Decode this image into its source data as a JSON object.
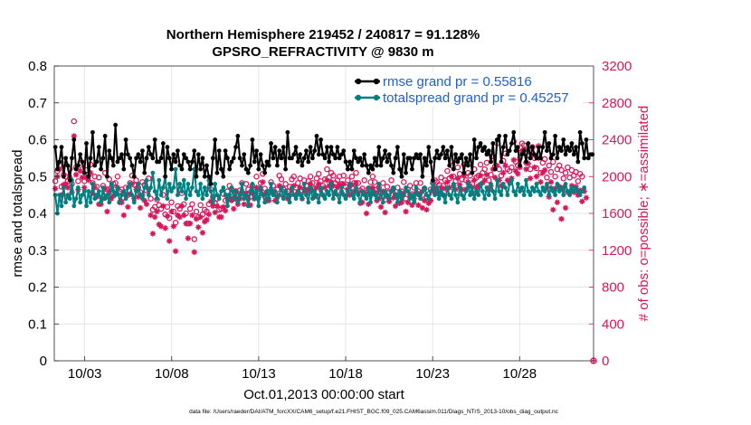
{
  "chart_data": {
    "type": "line",
    "title_line1": "Northern Hemisphere 219452 / 240817 = 91.128%",
    "title_line2": "GPSRO_REFRACTIVITY @ 9830 m",
    "xlabel": "Oct.01,2013 00:00:00 start",
    "ylabel_left": "rmse and totalspread",
    "ylabel_right": "# of obs: o=possible; ∗=assimilated",
    "footer": "data file: /Users/raeder/DAI/ATM_forcXX/CAM6_setup/f.e21.FHIST_BGC.f09_025.CAM6assim.011/Diags_NTrS_2013-10/obs_diag_output.nc",
    "x_range_days": [
      0.25,
      31.25
    ],
    "x_ticks": [
      {
        "day": 2,
        "label": "10/03"
      },
      {
        "day": 7,
        "label": "10/08"
      },
      {
        "day": 12,
        "label": "10/13"
      },
      {
        "day": 17,
        "label": "10/18"
      },
      {
        "day": 22,
        "label": "10/23"
      },
      {
        "day": 27,
        "label": "10/28"
      }
    ],
    "ylim_left": [
      0,
      0.8
    ],
    "yticks_left": [
      "0",
      "0.1",
      "0.2",
      "0.3",
      "0.4",
      "0.5",
      "0.6",
      "0.7",
      "0.8"
    ],
    "ylim_right": [
      0,
      3200
    ],
    "yticks_right": [
      "0",
      "400",
      "800",
      "1200",
      "1600",
      "2000",
      "2400",
      "2800",
      "3200"
    ],
    "legend": {
      "position": "top-right",
      "entries": [
        {
          "label": "rmse grand pr = 0.55816",
          "color": "#000000"
        },
        {
          "label": "totalspread grand pr = 0.45257",
          "color": "#008080"
        }
      ]
    },
    "colors": {
      "rmse": "#000000",
      "spread": "#008080",
      "obs": "#d6185a",
      "legend_text": "#1f5fd6"
    },
    "series": [
      {
        "name": "rmse",
        "axis": "left",
        "values": [
          0.58,
          0.52,
          0.54,
          0.58,
          0.5,
          0.55,
          0.53,
          0.49,
          0.55,
          0.6,
          0.52,
          0.53,
          0.56,
          0.54,
          0.51,
          0.59,
          0.5,
          0.55,
          0.62,
          0.53,
          0.54,
          0.58,
          0.52,
          0.55,
          0.61,
          0.5,
          0.57,
          0.55,
          0.53,
          0.64,
          0.54,
          0.55,
          0.56,
          0.52,
          0.6,
          0.56,
          0.55,
          0.53,
          0.5,
          0.55,
          0.56,
          0.54,
          0.57,
          0.51,
          0.55,
          0.58,
          0.56,
          0.55,
          0.6,
          0.54,
          0.54,
          0.55,
          0.59,
          0.5,
          0.58,
          0.55,
          0.52,
          0.56,
          0.54,
          0.57,
          0.53,
          0.52,
          0.56,
          0.55,
          0.54,
          0.52,
          0.54,
          0.57,
          0.5,
          0.56,
          0.52,
          0.55,
          0.5,
          0.53,
          0.5,
          0.48,
          0.55,
          0.6,
          0.51,
          0.57,
          0.52,
          0.5,
          0.57,
          0.55,
          0.52,
          0.54,
          0.55,
          0.58,
          0.61,
          0.55,
          0.53,
          0.56,
          0.52,
          0.51,
          0.53,
          0.6,
          0.54,
          0.57,
          0.52,
          0.56,
          0.53,
          0.51,
          0.54,
          0.53,
          0.59,
          0.55,
          0.58,
          0.53,
          0.57,
          0.55,
          0.58,
          0.52,
          0.62,
          0.55,
          0.55,
          0.56,
          0.58,
          0.54,
          0.56,
          0.53,
          0.55,
          0.57,
          0.54,
          0.58,
          0.55,
          0.57,
          0.61,
          0.56,
          0.6,
          0.56,
          0.55,
          0.58,
          0.54,
          0.58,
          0.56,
          0.55,
          0.58,
          0.55,
          0.56,
          0.57,
          0.54,
          0.52,
          0.54,
          0.52,
          0.57,
          0.55,
          0.54,
          0.55,
          0.53,
          0.56,
          0.53,
          0.51,
          0.53,
          0.52,
          0.55,
          0.53,
          0.58,
          0.53,
          0.55,
          0.57,
          0.54,
          0.56,
          0.53,
          0.51,
          0.55,
          0.58,
          0.52,
          0.5,
          0.56,
          0.51,
          0.55,
          0.55,
          0.52,
          0.55,
          0.56,
          0.55,
          0.56,
          0.5,
          0.55,
          0.53,
          0.58,
          0.54,
          0.49,
          0.55,
          0.57,
          0.55,
          0.56,
          0.58,
          0.55,
          0.57,
          0.53,
          0.58,
          0.52,
          0.56,
          0.54,
          0.55,
          0.56,
          0.51,
          0.55,
          0.53,
          0.56,
          0.51,
          0.6,
          0.55,
          0.58,
          0.59,
          0.57,
          0.58,
          0.56,
          0.57,
          0.54,
          0.59,
          0.52,
          0.6,
          0.61,
          0.54,
          0.58,
          0.61,
          0.56,
          0.57,
          0.59,
          0.62,
          0.57,
          0.58,
          0.53,
          0.56,
          0.57,
          0.54,
          0.59,
          0.55,
          0.58,
          0.56,
          0.55,
          0.58,
          0.55,
          0.58,
          0.62,
          0.57,
          0.59,
          0.55,
          0.56,
          0.61,
          0.55,
          0.58,
          0.57,
          0.6,
          0.56,
          0.58,
          0.57,
          0.59,
          0.56,
          0.58,
          0.54,
          0.62,
          0.59,
          0.55,
          0.6,
          0.55,
          0.56,
          0.56
        ]
      },
      {
        "name": "totalspread",
        "axis": "left",
        "values": [
          0.45,
          0.4,
          0.45,
          0.42,
          0.47,
          0.43,
          0.45,
          0.44,
          0.49,
          0.42,
          0.44,
          0.47,
          0.43,
          0.45,
          0.46,
          0.42,
          0.46,
          0.43,
          0.48,
          0.44,
          0.45,
          0.46,
          0.43,
          0.47,
          0.44,
          0.45,
          0.43,
          0.48,
          0.46,
          0.45,
          0.47,
          0.43,
          0.45,
          0.46,
          0.44,
          0.47,
          0.48,
          0.45,
          0.43,
          0.46,
          0.48,
          0.45,
          0.44,
          0.47,
          0.49,
          0.45,
          0.47,
          0.51,
          0.46,
          0.44,
          0.49,
          0.45,
          0.47,
          0.5,
          0.44,
          0.48,
          0.46,
          0.47,
          0.52,
          0.45,
          0.48,
          0.46,
          0.49,
          0.44,
          0.48,
          0.45,
          0.47,
          0.52,
          0.46,
          0.45,
          0.48,
          0.44,
          0.47,
          0.45,
          0.49,
          0.46,
          0.43,
          0.48,
          0.45,
          0.44,
          0.46,
          0.47,
          0.45,
          0.42,
          0.45,
          0.47,
          0.44,
          0.46,
          0.43,
          0.45,
          0.48,
          0.44,
          0.45,
          0.42,
          0.46,
          0.48,
          0.44,
          0.46,
          0.42,
          0.47,
          0.45,
          0.43,
          0.46,
          0.44,
          0.48,
          0.45,
          0.46,
          0.43,
          0.45,
          0.47,
          0.44,
          0.46,
          0.45,
          0.43,
          0.47,
          0.45,
          0.44,
          0.46,
          0.45,
          0.44,
          0.48,
          0.45,
          0.43,
          0.47,
          0.44,
          0.46,
          0.45,
          0.43,
          0.47,
          0.45,
          0.44,
          0.46,
          0.45,
          0.48,
          0.44,
          0.46,
          0.45,
          0.43,
          0.47,
          0.45,
          0.44,
          0.46,
          0.48,
          0.45,
          0.44,
          0.47,
          0.45,
          0.43,
          0.46,
          0.45,
          0.44,
          0.47,
          0.43,
          0.46,
          0.45,
          0.44,
          0.48,
          0.45,
          0.43,
          0.46,
          0.45,
          0.44,
          0.46,
          0.47,
          0.45,
          0.43,
          0.46,
          0.44,
          0.45,
          0.47,
          0.46,
          0.44,
          0.45,
          0.43,
          0.47,
          0.45,
          0.44,
          0.46,
          0.47,
          0.45,
          0.44,
          0.46,
          0.48,
          0.45,
          0.47,
          0.44,
          0.46,
          0.45,
          0.43,
          0.47,
          0.45,
          0.44,
          0.48,
          0.45,
          0.43,
          0.47,
          0.45,
          0.44,
          0.46,
          0.48,
          0.45,
          0.47,
          0.44,
          0.46,
          0.45,
          0.48,
          0.46,
          0.44,
          0.47,
          0.45,
          0.48,
          0.46,
          0.44,
          0.49,
          0.46,
          0.45,
          0.48,
          0.47,
          0.45,
          0.48,
          0.49,
          0.46,
          0.45,
          0.48,
          0.46,
          0.47,
          0.45,
          0.49,
          0.46,
          0.45,
          0.47,
          0.46,
          0.48,
          0.46,
          0.45,
          0.47,
          0.46,
          0.48,
          0.45,
          0.47,
          0.46,
          0.45,
          0.48,
          0.46,
          0.47,
          0.45,
          0.48,
          0.46,
          0.45,
          0.47,
          0.46,
          0.47,
          0.46,
          0.45,
          0.46,
          0.47
        ]
      },
      {
        "name": "obs possible",
        "axis": "right",
        "marker": "circle",
        "values": [
          1950,
          2060,
          2120,
          1890,
          2020,
          2000,
          1950,
          2080,
          1920,
          2600,
          2100,
          1950,
          2150,
          2080,
          1950,
          2070,
          2020,
          2130,
          1930,
          2000,
          1890,
          1990,
          1820,
          1900,
          2040,
          1860,
          1970,
          1880,
          1920,
          1930,
          2000,
          1840,
          1860,
          1770,
          1880,
          1800,
          1930,
          2010,
          1910,
          1960,
          1880,
          1830,
          1940,
          1910,
          1850,
          1980,
          1760,
          1640,
          1670,
          1750,
          1690,
          1650,
          1800,
          1590,
          1670,
          1550,
          1720,
          1620,
          1500,
          1680,
          1650,
          1820,
          1700,
          1600,
          1490,
          1650,
          1700,
          1320,
          1620,
          1560,
          1690,
          1590,
          1640,
          1620,
          1700,
          1860,
          1780,
          1710,
          1760,
          1640,
          1650,
          1810,
          1740,
          1840,
          1900,
          1860,
          1760,
          1840,
          1790,
          1850,
          1930,
          1810,
          1920,
          1860,
          1780,
          1900,
          1860,
          2000,
          1840,
          1930,
          2030,
          1870,
          1800,
          1830,
          1940,
          1900,
          1810,
          1860,
          2010,
          1970,
          1860,
          1920,
          1840,
          1890,
          1970,
          2000,
          1880,
          1930,
          1980,
          1850,
          1960,
          1900,
          1950,
          2000,
          1930,
          1870,
          1980,
          2030,
          1950,
          1900,
          1970,
          2080,
          1990,
          2040,
          2010,
          1930,
          1960,
          2000,
          1920,
          2010,
          1890,
          1960,
          1900,
          2000,
          1930,
          2040,
          1930,
          1850,
          1870,
          1960,
          1800,
          1870,
          1940,
          2000,
          1940,
          1860,
          1880,
          1820,
          1930,
          1750,
          1890,
          1830,
          1960,
          1870,
          1800,
          1880,
          1810,
          1840,
          1940,
          1760,
          1860,
          1900,
          1810,
          1880,
          1930,
          1840,
          1930,
          1800,
          1870,
          1780,
          1810,
          1860,
          1930,
          1960,
          1940,
          1910,
          1990,
          1900,
          1960,
          2060,
          1980,
          2120,
          2000,
          1950,
          2100,
          2030,
          1970,
          2130,
          1960,
          2040,
          2010,
          1920,
          2080,
          1990,
          2010,
          2130,
          2040,
          2080,
          2150,
          1960,
          2020,
          2220,
          2110,
          2360,
          2080,
          2010,
          2170,
          2250,
          2080,
          2060,
          2100,
          2380,
          2160,
          2120,
          2200,
          2360,
          2340,
          2150,
          2230,
          2080,
          2320,
          2200,
          2090,
          2330,
          2040,
          2150,
          2190,
          1990,
          2120,
          2050,
          2160,
          2000,
          2080,
          2120,
          2070,
          1980,
          2040,
          2100,
          1990,
          2070,
          2010,
          2050,
          1950,
          2030,
          2000
        ]
      },
      {
        "name": "obs assimilated",
        "axis": "right",
        "marker": "star",
        "values": [
          1870,
          2000,
          2080,
          1800,
          1910,
          1920,
          1880,
          1990,
          1830,
          2440,
          2020,
          1860,
          2060,
          1990,
          1880,
          1990,
          1960,
          2040,
          1820,
          1880,
          1780,
          1700,
          1700,
          1760,
          1870,
          1620,
          1840,
          1760,
          1790,
          1810,
          1880,
          1720,
          1720,
          1580,
          1800,
          1670,
          1810,
          1920,
          1760,
          1860,
          1780,
          1660,
          1800,
          1740,
          1700,
          1860,
          1580,
          1380,
          1560,
          1620,
          1480,
          1460,
          1680,
          1440,
          1570,
          1300,
          1620,
          1460,
          1190,
          1580,
          1560,
          1680,
          1580,
          1490,
          1330,
          1490,
          1580,
          1180,
          1540,
          1450,
          1560,
          1390,
          1510,
          1530,
          1590,
          1730,
          1680,
          1610,
          1680,
          1560,
          1560,
          1670,
          1630,
          1760,
          1760,
          1740,
          1650,
          1760,
          1700,
          1760,
          1840,
          1700,
          1820,
          1760,
          1690,
          1820,
          1760,
          1880,
          1770,
          1860,
          1940,
          1810,
          1740,
          1740,
          1860,
          1820,
          1740,
          1780,
          1900,
          1880,
          1780,
          1840,
          1760,
          1800,
          1860,
          1900,
          1800,
          1830,
          1880,
          1760,
          1860,
          1820,
          1860,
          1920,
          1850,
          1780,
          1880,
          1920,
          1860,
          1800,
          1880,
          1960,
          1900,
          1940,
          1900,
          1820,
          1880,
          1910,
          1830,
          1920,
          1790,
          1860,
          1800,
          1910,
          1840,
          1930,
          1830,
          1710,
          1720,
          1830,
          1600,
          1700,
          1810,
          1880,
          1830,
          1740,
          1760,
          1670,
          1840,
          1610,
          1780,
          1730,
          1840,
          1770,
          1680,
          1780,
          1710,
          1720,
          1820,
          1620,
          1720,
          1800,
          1690,
          1760,
          1820,
          1690,
          1820,
          1660,
          1740,
          1640,
          1710,
          1740,
          1840,
          1880,
          1840,
          1810,
          1880,
          1800,
          1870,
          1940,
          1880,
          2000,
          1900,
          1860,
          1980,
          1910,
          1860,
          2010,
          1860,
          1940,
          1900,
          1820,
          1960,
          1880,
          1900,
          2010,
          1930,
          1960,
          2020,
          1860,
          1900,
          2080,
          1990,
          2120,
          1960,
          1900,
          2040,
          2120,
          1960,
          1940,
          1980,
          2180,
          2060,
          2030,
          2100,
          2280,
          2300,
          2080,
          2140,
          1980,
          2230,
          2100,
          2000,
          2200,
          1940,
          2040,
          2070,
          1880,
          1780,
          1940,
          1640,
          1870,
          1720,
          1890,
          1540,
          1880,
          1660,
          1830,
          1840,
          1900,
          1830,
          1890,
          1800,
          1850,
          1730,
          1840,
          1770
        ]
      }
    ]
  }
}
